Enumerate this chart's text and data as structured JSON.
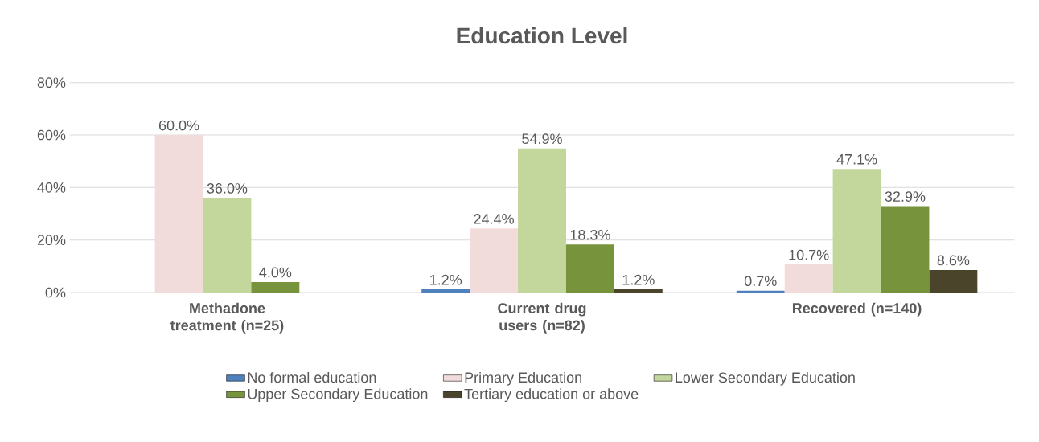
{
  "chart_data": {
    "type": "bar",
    "title": "Education Level",
    "categories": [
      "Methadone treatment (n=25)",
      "Current drug users (n=82)",
      "Recovered (n=140)"
    ],
    "series": [
      {
        "name": "No formal education",
        "color": "#4f81bd",
        "values": [
          null,
          1.2,
          0.7
        ],
        "value_labels": [
          null,
          "1.2%",
          "0.7%"
        ]
      },
      {
        "name": "Primary Education",
        "color": "#f2dcdb",
        "values": [
          60.0,
          24.4,
          10.7
        ],
        "value_labels": [
          "60.0%",
          "24.4%",
          "10.7%"
        ]
      },
      {
        "name": "Lower Secondary Education",
        "color": "#c3d69b",
        "values": [
          36.0,
          54.9,
          47.1
        ],
        "value_labels": [
          "36.0%",
          "54.9%",
          "47.1%"
        ]
      },
      {
        "name": "Upper Secondary Education",
        "color": "#77933c",
        "values": [
          4.0,
          18.3,
          32.9
        ],
        "value_labels": [
          "4.0%",
          "18.3%",
          "32.9%"
        ]
      },
      {
        "name": "Tertiary education or above",
        "color": "#4a452a",
        "values": [
          null,
          1.2,
          8.6
        ],
        "value_labels": [
          null,
          "1.2%",
          "8.6%"
        ]
      }
    ],
    "ylim": [
      0,
      80
    ],
    "yticks": [
      {
        "value": 0,
        "label": "0%"
      },
      {
        "value": 20,
        "label": "20%"
      },
      {
        "value": 40,
        "label": "40%"
      },
      {
        "value": 60,
        "label": "60%"
      },
      {
        "value": 80,
        "label": "80%"
      }
    ],
    "grid": "y",
    "legend": "bottom"
  }
}
